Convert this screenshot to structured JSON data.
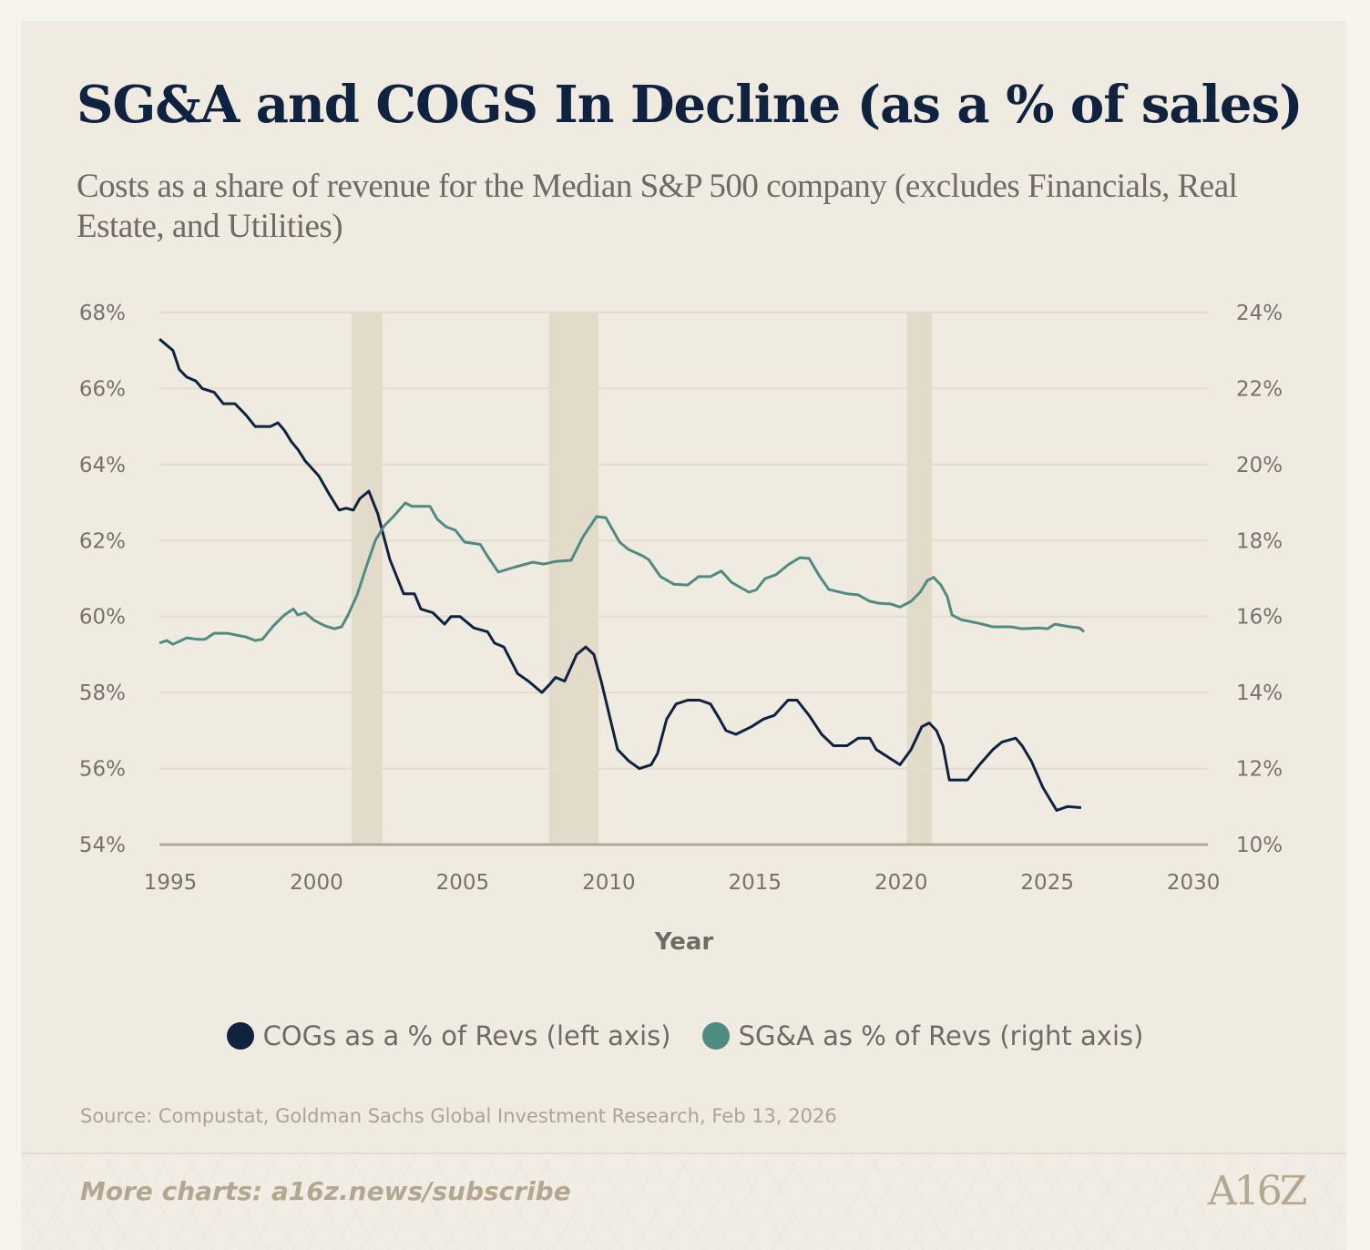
{
  "title": "SG&A and COGS In Decline (as a % of sales)",
  "subtitle": "Costs as a share of revenue for the Median S&P 500 company (excludes Financials, Real Estate, and Utilities)",
  "source": "Source: Compustat, Goldman Sachs Global Investment Research, Feb 13, 2026",
  "footer": {
    "more_charts": "More charts: a16z.news/subscribe",
    "logo": "A16Z"
  },
  "colors": {
    "cogs": "#0f2341",
    "sga": "#4e8c82",
    "recession": "#e3dbca",
    "grid": "#e2dccd",
    "baseline": "#b3a894"
  },
  "chart_data": {
    "type": "line",
    "title": "SG&A and COGS In Decline (as a % of sales)",
    "xlabel": "Year",
    "xlim": [
      1994.63,
      2030.5
    ],
    "x_ticks": [
      1995,
      2000,
      2005,
      2010,
      2015,
      2020,
      2025,
      2030
    ],
    "x_tick_labels": [
      "1995",
      "2000",
      "2005",
      "2010",
      "2015",
      "2020",
      "2025",
      "2030"
    ],
    "ylim_left": [
      54,
      68
    ],
    "left_ticks": [
      54,
      56,
      58,
      60,
      62,
      64,
      66,
      68
    ],
    "left_tick_labels": [
      "54%",
      "56%",
      "58%",
      "60%",
      "62%",
      "64%",
      "66%",
      "68%"
    ],
    "ylim_right": [
      10,
      24
    ],
    "right_ticks": [
      10,
      12,
      14,
      16,
      18,
      20,
      22,
      24
    ],
    "right_tick_labels": [
      "10%",
      "12%",
      "14%",
      "16%",
      "18%",
      "20%",
      "22%",
      "24%"
    ],
    "grid": true,
    "legend_position": "bottom",
    "recessions": [
      [
        2001.2,
        2002.25
      ],
      [
        2007.95,
        2009.65
      ],
      [
        2020.2,
        2021.05
      ]
    ],
    "series": [
      {
        "name": "COGs as a % of Revs (left axis)",
        "axis": "left",
        "x": [
          1994.63,
          1995.09,
          1995.31,
          1995.56,
          1995.87,
          1996.09,
          1996.5,
          1996.81,
          1997.21,
          1997.59,
          1997.9,
          1998.43,
          1998.68,
          1998.9,
          1999.14,
          1999.36,
          1999.61,
          2000.08,
          2000.45,
          2000.77,
          2001.01,
          2001.26,
          2001.48,
          2001.79,
          2002.1,
          2002.51,
          2002.98,
          2003.35,
          2003.57,
          2003.98,
          2004.38,
          2004.6,
          2004.91,
          2005.38,
          2005.85,
          2006.09,
          2006.41,
          2006.88,
          2007.25,
          2007.71,
          2007.96,
          2008.18,
          2008.49,
          2008.9,
          2009.21,
          2009.49,
          2009.74,
          2010.05,
          2010.3,
          2010.68,
          2011.05,
          2011.45,
          2011.67,
          2011.98,
          2012.3,
          2012.7,
          2013.11,
          2013.48,
          2013.79,
          2014.01,
          2014.35,
          2014.88,
          2015.29,
          2015.66,
          2016.13,
          2016.44,
          2016.85,
          2017.28,
          2017.69,
          2018.15,
          2018.53,
          2018.93,
          2019.15,
          2019.56,
          2019.96,
          2020.34,
          2020.71,
          2020.96,
          2021.21,
          2021.43,
          2021.65,
          2022.27,
          2022.68,
          2023.14,
          2023.45,
          2023.92,
          2024.14,
          2024.45,
          2024.85,
          2025.32,
          2025.69,
          2026.16
        ],
        "y": [
          67.3,
          67.0,
          66.5,
          66.3,
          66.2,
          66.0,
          65.9,
          65.6,
          65.6,
          65.3,
          65.0,
          65.0,
          65.1,
          64.9,
          64.6,
          64.4,
          64.1,
          63.7,
          63.2,
          62.8,
          62.85,
          62.8,
          63.1,
          63.3,
          62.7,
          61.5,
          60.6,
          60.6,
          60.2,
          60.1,
          59.8,
          60.0,
          60.0,
          59.7,
          59.6,
          59.3,
          59.2,
          58.5,
          58.3,
          58.0,
          58.2,
          58.4,
          58.3,
          59.0,
          59.2,
          59.0,
          58.3,
          57.3,
          56.5,
          56.2,
          56.0,
          56.1,
          56.4,
          57.3,
          57.7,
          57.8,
          57.8,
          57.7,
          57.3,
          57.0,
          56.9,
          57.1,
          57.3,
          57.4,
          57.8,
          57.8,
          57.4,
          56.9,
          56.6,
          56.6,
          56.8,
          56.8,
          56.5,
          56.3,
          56.1,
          56.5,
          57.1,
          57.2,
          57.0,
          56.6,
          55.7,
          55.7,
          56.1,
          56.5,
          56.7,
          56.8,
          56.6,
          56.2,
          55.5,
          54.9,
          55.0,
          54.97
        ]
      },
      {
        "name": "SG&A as % of Revs (right axis)",
        "axis": "right",
        "x": [
          1994.63,
          1994.88,
          1995.09,
          1995.56,
          1995.93,
          1996.18,
          1996.5,
          1996.96,
          1997.59,
          1997.9,
          1998.15,
          1998.52,
          1998.9,
          1999.21,
          1999.36,
          1999.61,
          1999.92,
          2000.3,
          2000.61,
          2000.86,
          2001.08,
          2001.39,
          2001.7,
          2002.01,
          2002.32,
          2002.63,
          2003.04,
          2003.26,
          2003.66,
          2003.88,
          2004.13,
          2004.44,
          2004.75,
          2005.07,
          2005.6,
          2005.84,
          2006.22,
          2006.78,
          2007.4,
          2007.78,
          2008.18,
          2008.71,
          2009.12,
          2009.58,
          2009.9,
          2010.37,
          2010.68,
          2011.15,
          2011.36,
          2011.77,
          2012.23,
          2012.7,
          2013.07,
          2013.48,
          2013.85,
          2014.2,
          2014.79,
          2015.04,
          2015.35,
          2015.72,
          2016.13,
          2016.53,
          2016.85,
          2017.22,
          2017.53,
          2018.15,
          2018.53,
          2018.93,
          2019.24,
          2019.65,
          2019.96,
          2020.34,
          2020.65,
          2020.9,
          2021.11,
          2021.36,
          2021.58,
          2021.74,
          2022.05,
          2022.67,
          2023.14,
          2023.76,
          2024.14,
          2024.7,
          2025.01,
          2025.26,
          2025.79,
          2026.1,
          2026.26
        ],
        "y": [
          15.3,
          15.37,
          15.27,
          15.44,
          15.4,
          15.4,
          15.56,
          15.56,
          15.46,
          15.37,
          15.4,
          15.75,
          16.04,
          16.2,
          16.04,
          16.1,
          15.9,
          15.75,
          15.68,
          15.73,
          16.04,
          16.57,
          17.3,
          18.0,
          18.39,
          18.63,
          18.99,
          18.9,
          18.9,
          18.9,
          18.56,
          18.36,
          18.27,
          17.96,
          17.9,
          17.6,
          17.17,
          17.3,
          17.43,
          17.38,
          17.45,
          17.48,
          18.1,
          18.63,
          18.6,
          17.96,
          17.76,
          17.6,
          17.5,
          17.05,
          16.85,
          16.83,
          17.05,
          17.05,
          17.2,
          16.9,
          16.64,
          16.7,
          17.0,
          17.1,
          17.36,
          17.55,
          17.53,
          17.05,
          16.71,
          16.6,
          16.57,
          16.4,
          16.35,
          16.33,
          16.25,
          16.4,
          16.64,
          16.95,
          17.03,
          16.83,
          16.52,
          16.04,
          15.92,
          15.82,
          15.73,
          15.73,
          15.68,
          15.7,
          15.68,
          15.8,
          15.73,
          15.7,
          15.6
        ]
      }
    ]
  }
}
